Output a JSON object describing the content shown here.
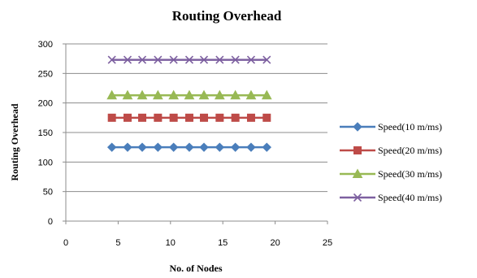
{
  "chart_data": {
    "type": "line",
    "title": "Routing Overhead",
    "xlabel": "No. of Nodes",
    "ylabel": "Routing Overhead",
    "xlim": [
      0,
      25
    ],
    "ylim": [
      0,
      300
    ],
    "x_ticks": [
      "0",
      "5",
      "10",
      "15",
      "20",
      "25"
    ],
    "y_ticks": [
      "0",
      "50",
      "100",
      "150",
      "200",
      "250",
      "300"
    ],
    "grid": "horizontal",
    "legend_position": "right",
    "x": [
      4.4,
      5.9,
      7.3,
      8.8,
      10.3,
      11.8,
      13.2,
      14.7,
      16.2,
      17.7,
      19.2
    ],
    "series": [
      {
        "name": "Speed(10 m/ms)",
        "color": "#4a7ebb",
        "marker": "diamond",
        "values": [
          125,
          125,
          125,
          125,
          125,
          125,
          125,
          125,
          125,
          125,
          125
        ]
      },
      {
        "name": "Speed(20 m/ms)",
        "color": "#be4b48",
        "marker": "square",
        "values": [
          175,
          175,
          175,
          175,
          175,
          175,
          175,
          175,
          175,
          175,
          175
        ]
      },
      {
        "name": "Speed(30 m/ms)",
        "color": "#98b954",
        "marker": "triangle",
        "values": [
          213,
          213,
          213,
          213,
          213,
          213,
          213,
          213,
          213,
          213,
          213
        ]
      },
      {
        "name": "Speed(40 m/ms)",
        "color": "#7d60a0",
        "marker": "x",
        "values": [
          273,
          273,
          273,
          273,
          273,
          273,
          273,
          273,
          273,
          273,
          273
        ]
      }
    ]
  }
}
